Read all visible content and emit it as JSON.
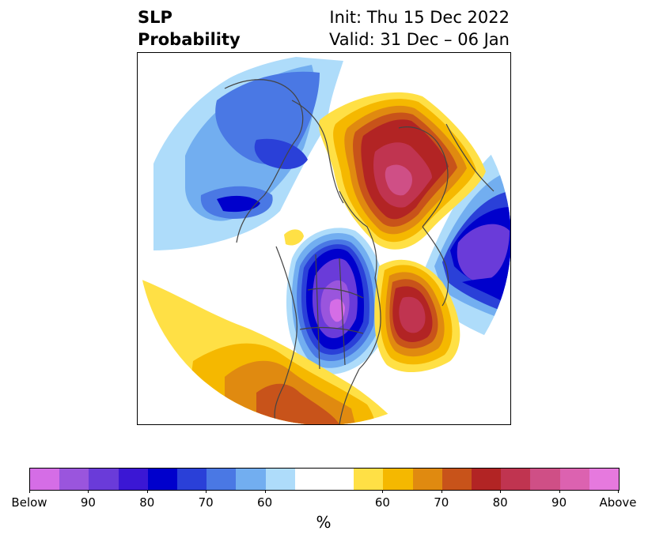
{
  "title": {
    "left_line1": "SLP",
    "left_line2": "Probability",
    "right_line1": "Init: Thu 15 Dec 2022",
    "right_line2": "Valid: 31 Dec – 06 Jan"
  },
  "colorbar": {
    "colors": [
      "#d56de6",
      "#9a55dd",
      "#6a3bd9",
      "#3b17d4",
      "#0000cc",
      "#2a40d8",
      "#4a78e4",
      "#72aef0",
      "#aedcfa",
      "#ffffff",
      "#ffffff",
      "#ffe045",
      "#f5b800",
      "#e08a10",
      "#c8531a",
      "#b22424",
      "#c03450",
      "#cf4f86",
      "#dc62b0",
      "#e679de"
    ],
    "labels": [
      {
        "text": "Below",
        "index": 0
      },
      {
        "text": "90",
        "index": 2
      },
      {
        "text": "80",
        "index": 4
      },
      {
        "text": "70",
        "index": 6
      },
      {
        "text": "60",
        "index": 8
      },
      {
        "text": "60",
        "index": 12
      },
      {
        "text": "70",
        "index": 14
      },
      {
        "text": "80",
        "index": 16
      },
      {
        "text": "90",
        "index": 18
      },
      {
        "text": "Above",
        "index": 20
      }
    ],
    "unit": "%"
  }
}
